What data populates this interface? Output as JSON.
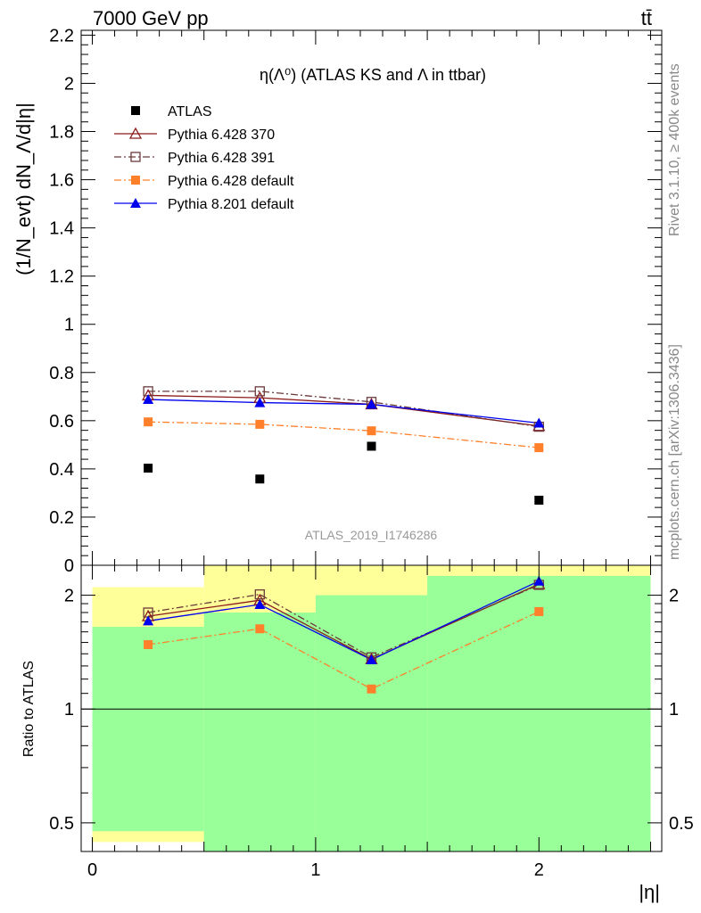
{
  "header": {
    "energy_label": "7000 GeV pp",
    "process_label": "tt̄"
  },
  "side_labels": {
    "rivet": "Rivet 3.1.10, ≥ 400k events",
    "mcplots": "mcplots.cern.ch [arXiv:1306.3436]"
  },
  "chart_data": [
    {
      "type": "scatter",
      "title": "η(Λ⁰) (ATLAS KS and Λ in ttbar)",
      "ylabel": "(1/N_evt) dN_Λ/d|η|",
      "xlabel": "|η|",
      "watermark": "ATLAS_2019_I1746286",
      "xlim": [
        -0.05,
        2.55
      ],
      "ylim": [
        0,
        2.22
      ],
      "y_ticks": [
        0,
        0.2,
        0.4,
        0.6,
        0.8,
        1,
        1.2,
        1.4,
        1.6,
        1.8,
        2,
        2.2
      ],
      "y_tick_labels": [
        "0",
        "0.2",
        "0.4",
        "0.6",
        "0.8",
        "1",
        "1.2",
        "1.4",
        "1.6",
        "1.8",
        "2",
        "2.2"
      ],
      "x": [
        0.25,
        0.75,
        1.25,
        2.0
      ],
      "legend_position": "top-left",
      "series": [
        {
          "name": "ATLAS",
          "values": [
            0.403,
            0.358,
            0.494,
            0.27
          ],
          "color": "#000000",
          "marker": "square-filled",
          "line": "none"
        },
        {
          "name": "Pythia 6.428 370",
          "values": [
            0.705,
            0.695,
            0.668,
            0.578
          ],
          "color": "#8b1a1a",
          "marker": "triangle-open",
          "line": "solid"
        },
        {
          "name": "Pythia 6.428 391",
          "values": [
            0.722,
            0.722,
            0.678,
            0.575
          ],
          "color": "#6b3a3a",
          "marker": "square-open",
          "line": "dashdot"
        },
        {
          "name": "Pythia 6.428 default",
          "values": [
            0.595,
            0.585,
            0.558,
            0.488
          ],
          "color": "#ff7f2a",
          "marker": "square-filled",
          "line": "dashdot"
        },
        {
          "name": "Pythia 8.201 default",
          "values": [
            0.688,
            0.675,
            0.668,
            0.59
          ],
          "color": "#0000ee",
          "marker": "triangle-filled",
          "line": "solid"
        }
      ]
    },
    {
      "type": "scatter",
      "title": "",
      "ylabel": "Ratio to ATLAS",
      "xlabel": "|η|",
      "scale": "log",
      "xlim": [
        -0.05,
        2.55
      ],
      "ylim": [
        0.42,
        2.4
      ],
      "y_ticks": [
        0.5,
        1,
        2
      ],
      "y_tick_labels": [
        "0.5",
        "1",
        "2"
      ],
      "x_ticks": [
        0,
        1,
        2
      ],
      "x_tick_labels": [
        "0",
        "1",
        "2"
      ],
      "x": [
        0.25,
        0.75,
        1.25,
        2.0
      ],
      "reference_line": 1,
      "bands": [
        {
          "x_range": [
            0,
            0.5
          ],
          "green": [
            0.475,
            1.65
          ],
          "yellow": [
            0.445,
            2.1
          ]
        },
        {
          "x_range": [
            0.5,
            1.0
          ],
          "green": [
            0.42,
            1.8
          ],
          "yellow": [
            0.42,
            2.4
          ]
        },
        {
          "x_range": [
            1.0,
            1.5
          ],
          "green": [
            0.42,
            2.0
          ],
          "yellow": [
            0.42,
            2.4
          ]
        },
        {
          "x_range": [
            1.5,
            2.5
          ],
          "green": [
            0.42,
            2.25
          ],
          "yellow": [
            0.42,
            2.4
          ]
        }
      ],
      "series": [
        {
          "name": "Pythia 6.428 370",
          "values": [
            1.76,
            1.94,
            1.355,
            2.14
          ],
          "color": "#8b1a1a",
          "marker": "triangle-open",
          "line": "solid"
        },
        {
          "name": "Pythia 6.428 391",
          "values": [
            1.8,
            2.01,
            1.37,
            2.13
          ],
          "color": "#6b3a3a",
          "marker": "square-open",
          "line": "dashdot"
        },
        {
          "name": "Pythia 6.428 default",
          "values": [
            1.48,
            1.63,
            1.13,
            1.81
          ],
          "color": "#ff7f2a",
          "marker": "square-filled",
          "line": "dashdot"
        },
        {
          "name": "Pythia 8.201 default",
          "values": [
            1.71,
            1.89,
            1.35,
            2.18
          ],
          "color": "#0000ee",
          "marker": "triangle-filled",
          "line": "solid"
        }
      ]
    }
  ]
}
